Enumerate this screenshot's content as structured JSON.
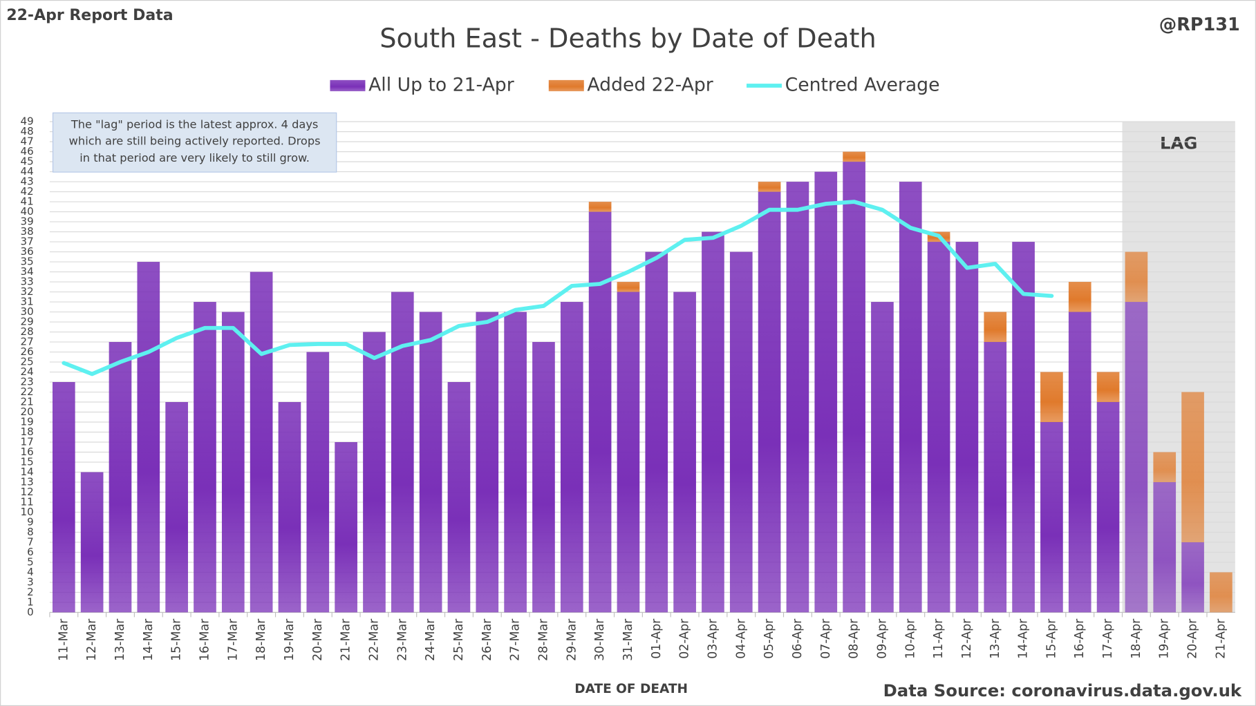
{
  "chart_data": {
    "type": "bar",
    "title": "South East - Deaths by Date of Death",
    "report_label": "22-Apr Report Data",
    "handle": "@RP131",
    "source": "Data Source: coronavirus.data.gov.uk",
    "xlabel": "DATE OF DEATH",
    "annotation": [
      "The \"lag\" period is the latest approx. 4 days",
      "which are still being actively reported. Drops",
      "in that period are very likely to still grow."
    ],
    "lag": {
      "label": "LAG",
      "from": "18-Apr"
    },
    "categories": [
      "11-Mar",
      "12-Mar",
      "13-Mar",
      "14-Mar",
      "15-Mar",
      "16-Mar",
      "17-Mar",
      "18-Mar",
      "19-Mar",
      "20-Mar",
      "21-Mar",
      "22-Mar",
      "23-Mar",
      "24-Mar",
      "25-Mar",
      "26-Mar",
      "27-Mar",
      "28-Mar",
      "29-Mar",
      "30-Mar",
      "31-Mar",
      "01-Apr",
      "02-Apr",
      "03-Apr",
      "04-Apr",
      "05-Apr",
      "06-Apr",
      "07-Apr",
      "08-Apr",
      "09-Apr",
      "10-Apr",
      "11-Apr",
      "12-Apr",
      "13-Apr",
      "14-Apr",
      "15-Apr",
      "16-Apr",
      "17-Apr",
      "18-Apr",
      "19-Apr",
      "20-Apr",
      "21-Apr"
    ],
    "series": [
      {
        "name": "All Up to 21-Apr",
        "color": "#7a30b8",
        "stack": true,
        "values": [
          23,
          14,
          27,
          35,
          21,
          31,
          30,
          34,
          21,
          26,
          17,
          28,
          32,
          30,
          23,
          30,
          30,
          27,
          31,
          40,
          32,
          36,
          32,
          38,
          36,
          42,
          43,
          44,
          45,
          31,
          43,
          37,
          37,
          27,
          37,
          19,
          30,
          21,
          31,
          13,
          7,
          0
        ]
      },
      {
        "name": "Added 22-Apr",
        "color": "#e07a2c",
        "stack": true,
        "values": [
          0,
          0,
          0,
          0,
          0,
          0,
          0,
          0,
          0,
          0,
          0,
          0,
          0,
          0,
          0,
          0,
          0,
          0,
          0,
          1,
          1,
          0,
          0,
          0,
          0,
          1,
          0,
          0,
          1,
          0,
          0,
          1,
          0,
          3,
          0,
          5,
          3,
          3,
          5,
          3,
          15,
          4
        ]
      },
      {
        "name": "Centred Average",
        "color": "#5ef0f0",
        "kind": "line",
        "values": [
          24.9,
          23.8,
          25,
          26,
          27.4,
          28.4,
          28.4,
          25.8,
          26.7,
          26.8,
          26.8,
          25.4,
          26.6,
          27.2,
          28.6,
          29,
          30.2,
          30.6,
          32.6,
          32.8,
          34,
          35.4,
          37.2,
          37.4,
          38.6,
          40.2,
          40.2,
          40.8,
          41,
          40.2,
          38.4,
          37.6,
          34.4,
          34.8,
          31.8,
          31.6,
          null,
          null,
          null,
          null,
          null,
          null
        ]
      }
    ],
    "ylim": [
      0,
      49
    ],
    "yticks": [
      0,
      1,
      2,
      3,
      4,
      5,
      6,
      7,
      8,
      9,
      10,
      11,
      12,
      13,
      14,
      15,
      16,
      17,
      18,
      19,
      20,
      21,
      22,
      23,
      24,
      25,
      26,
      27,
      28,
      29,
      30,
      31,
      32,
      33,
      34,
      35,
      36,
      37,
      38,
      39,
      40,
      41,
      42,
      43,
      44,
      45,
      46,
      47,
      48,
      49
    ],
    "grid": true
  }
}
